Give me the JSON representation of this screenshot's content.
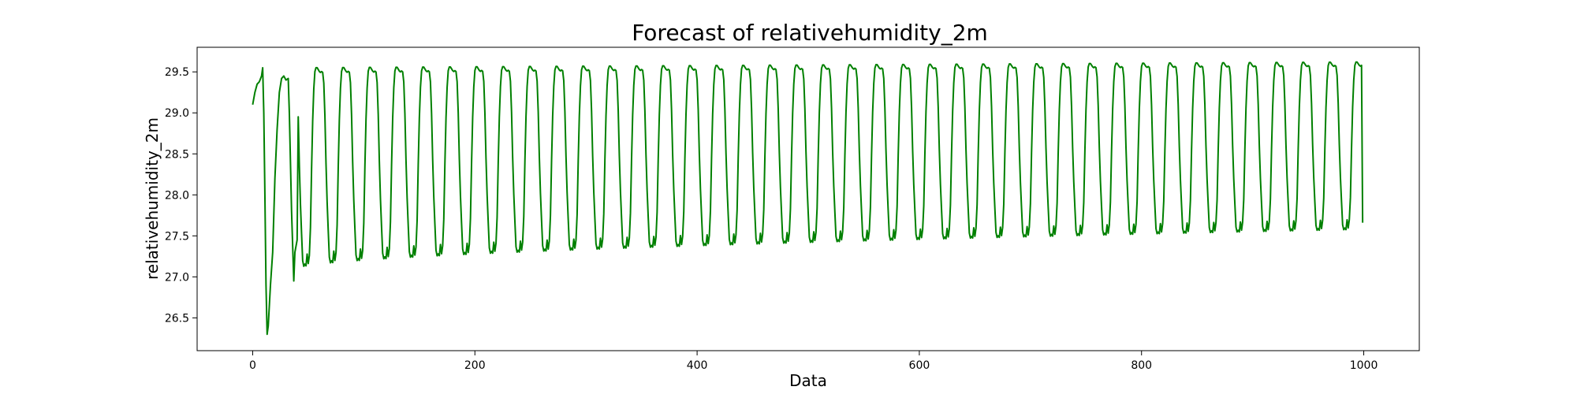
{
  "chart_data": {
    "type": "line",
    "title": "Forecast of relativehumidity_2m",
    "xlabel": "Data",
    "ylabel": "relativehumidity_2m",
    "xlim": [
      -50,
      1050
    ],
    "ylim": [
      26.1,
      29.8
    ],
    "xticks": [
      0,
      200,
      400,
      600,
      800,
      1000
    ],
    "yticks": [
      26.5,
      27.0,
      27.5,
      28.0,
      28.5,
      29.0,
      29.5
    ],
    "grid": false,
    "legend": "none",
    "line_color": "#008000",
    "series": [
      {
        "x_start": 0,
        "x_end": 999,
        "n_points": 1000,
        "period": 24,
        "cycle_template": [
          27.56,
          27.68,
          27.58,
          27.64,
          27.95,
          28.55,
          29.05,
          29.38,
          29.56,
          29.6,
          29.6,
          29.58,
          29.56,
          29.55,
          29.56,
          29.55,
          29.44,
          29.1,
          28.6,
          28.2,
          27.9,
          27.62,
          27.56,
          27.58
        ],
        "first_segment": [
          {
            "x": 0,
            "y": 29.1
          },
          {
            "x": 2,
            "y": 29.25
          },
          {
            "x": 4,
            "y": 29.35
          },
          {
            "x": 6,
            "y": 29.38
          },
          {
            "x": 8,
            "y": 29.45
          },
          {
            "x": 9,
            "y": 29.55
          },
          {
            "x": 10,
            "y": 29.0
          },
          {
            "x": 11,
            "y": 28.0
          },
          {
            "x": 12,
            "y": 26.9
          },
          {
            "x": 13,
            "y": 26.3
          },
          {
            "x": 14,
            "y": 26.4
          },
          {
            "x": 16,
            "y": 26.9
          },
          {
            "x": 18,
            "y": 27.3
          },
          {
            "x": 20,
            "y": 28.2
          },
          {
            "x": 22,
            "y": 28.8
          },
          {
            "x": 24,
            "y": 29.25
          },
          {
            "x": 26,
            "y": 29.42
          },
          {
            "x": 28,
            "y": 29.45
          },
          {
            "x": 30,
            "y": 29.4
          },
          {
            "x": 32,
            "y": 29.42
          },
          {
            "x": 33,
            "y": 29.0
          },
          {
            "x": 35,
            "y": 27.8
          },
          {
            "x": 37,
            "y": 26.95
          },
          {
            "x": 38,
            "y": 27.3
          },
          {
            "x": 40,
            "y": 27.45
          }
        ],
        "trough_start": 27.1,
        "trough_end": 27.58,
        "peak_start": 29.55,
        "peak_end": 29.62,
        "last_point": {
          "x": 999,
          "y": 27.66
        }
      }
    ]
  }
}
